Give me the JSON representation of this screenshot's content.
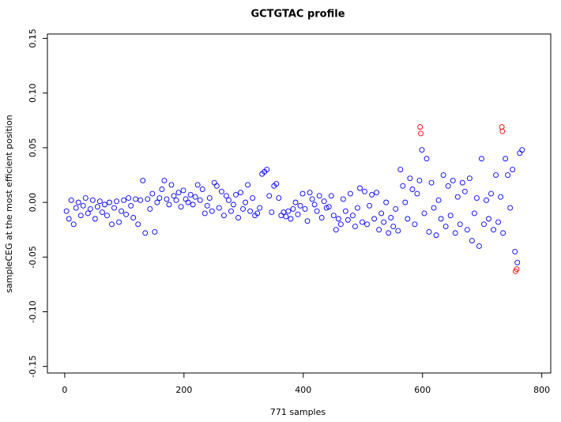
{
  "chart_data": {
    "type": "scatter",
    "title": "GCTGTAC profile",
    "x_label": "771 samples",
    "y_label": "sampleCEG at the most efficient position",
    "xlim": [
      -29,
      815
    ],
    "ylim": [
      -0.156,
      0.154
    ],
    "xticks": [
      0,
      200,
      400,
      600,
      800
    ],
    "yticks": [
      {
        "value": -0.15,
        "label": "-0.15"
      },
      {
        "value": -0.1,
        "label": "-0.10"
      },
      {
        "value": -0.05,
        "label": "-0.05"
      },
      {
        "value": 0,
        "label": "0.00"
      },
      0.05,
      {
        "value": 0.1,
        "label": "0.10"
      },
      0.15
    ],
    "series": [
      {
        "color": "#0000ff",
        "x": [
          3,
          7,
          11,
          15,
          19,
          23,
          27,
          31,
          35,
          39,
          43,
          47,
          51,
          55,
          59,
          63,
          67,
          71,
          75,
          79,
          83,
          87,
          91,
          95,
          99,
          103,
          107,
          111,
          115,
          119,
          123,
          127,
          131,
          135,
          139,
          143,
          147,
          151,
          155,
          159,
          163,
          167,
          171,
          175,
          179,
          183,
          187,
          191,
          195,
          199,
          203,
          207,
          211,
          215,
          219,
          223,
          227,
          231,
          235,
          239,
          243,
          247,
          251,
          255,
          259,
          263,
          267,
          271,
          275,
          279,
          283,
          287,
          291,
          295,
          299,
          303,
          307,
          311,
          315,
          319,
          323,
          327,
          331,
          335,
          339,
          343,
          347,
          351,
          355,
          359,
          363,
          367,
          371,
          375,
          379,
          383,
          387,
          391,
          395,
          399,
          403,
          407,
          411,
          415,
          419,
          423,
          427,
          431,
          435,
          439,
          443,
          447,
          451,
          455,
          459,
          463,
          467,
          471,
          475,
          479,
          483,
          487,
          491,
          495,
          499,
          503,
          507,
          511,
          515,
          519,
          523,
          527,
          531,
          535,
          539,
          543,
          547,
          551,
          555,
          559,
          563,
          567,
          571,
          575,
          579,
          583,
          587,
          591,
          595,
          599,
          603,
          607,
          611,
          615,
          619,
          623,
          627,
          631,
          635,
          639,
          643,
          647,
          651,
          655,
          659,
          663,
          667,
          671,
          675,
          679,
          683,
          687,
          691,
          695,
          699,
          703,
          707,
          711,
          715,
          719,
          723,
          727,
          731,
          735,
          739,
          743,
          747,
          751,
          755,
          759,
          763,
          767
        ],
        "values": [
          -0.008,
          -0.015,
          0.002,
          -0.02,
          -0.005,
          0.0,
          -0.012,
          -0.003,
          0.004,
          -0.01,
          -0.006,
          0.002,
          -0.015,
          -0.004,
          0.001,
          -0.009,
          -0.002,
          -0.012,
          0.0,
          -0.02,
          -0.005,
          0.001,
          -0.018,
          -0.008,
          0.002,
          -0.011,
          0.004,
          -0.003,
          -0.014,
          0.003,
          -0.02,
          0.002,
          0.02,
          -0.028,
          0.003,
          -0.006,
          0.008,
          -0.027,
          0.0,
          0.004,
          0.012,
          0.02,
          0.003,
          -0.002,
          0.016,
          0.006,
          0.002,
          0.009,
          -0.004,
          0.011,
          0.003,
          0.0,
          0.007,
          -0.002,
          0.005,
          0.016,
          0.002,
          0.012,
          -0.01,
          -0.003,
          0.004,
          -0.008,
          0.018,
          0.015,
          -0.005,
          0.01,
          -0.012,
          0.006,
          0.002,
          -0.008,
          -0.002,
          0.007,
          -0.014,
          0.009,
          -0.006,
          0.0,
          0.016,
          -0.008,
          0.004,
          -0.012,
          -0.01,
          -0.005,
          0.026,
          0.028,
          0.03,
          0.006,
          -0.009,
          0.015,
          0.017,
          0.004,
          -0.012,
          -0.009,
          -0.013,
          -0.008,
          -0.015,
          -0.006,
          0.0,
          -0.011,
          -0.003,
          0.008,
          -0.006,
          -0.017,
          0.009,
          0.003,
          -0.002,
          -0.008,
          0.006,
          -0.014,
          0.001,
          -0.005,
          -0.004,
          0.006,
          -0.012,
          -0.025,
          -0.015,
          -0.02,
          0.003,
          -0.008,
          -0.016,
          0.008,
          -0.012,
          -0.022,
          -0.005,
          0.013,
          -0.018,
          0.01,
          -0.02,
          -0.003,
          0.007,
          -0.015,
          0.009,
          -0.025,
          -0.01,
          -0.018,
          0.0,
          -0.028,
          -0.014,
          -0.022,
          -0.006,
          -0.026,
          0.03,
          0.015,
          0.0,
          -0.015,
          0.022,
          0.012,
          -0.02,
          0.008,
          0.02,
          0.048,
          -0.01,
          0.04,
          -0.027,
          0.018,
          -0.005,
          -0.03,
          0.002,
          -0.015,
          0.025,
          -0.022,
          0.015,
          -0.012,
          0.02,
          -0.028,
          0.005,
          -0.02,
          0.018,
          0.01,
          -0.025,
          0.022,
          -0.035,
          -0.01,
          0.004,
          -0.04,
          0.04,
          -0.02,
          0.002,
          -0.015,
          0.008,
          -0.025,
          0.025,
          -0.018,
          0.005,
          -0.028,
          0.04,
          0.025,
          -0.005,
          0.03,
          -0.045,
          -0.055,
          0.045,
          0.048
        ]
      },
      {
        "color": "#ff0000",
        "x": [
          596,
          597,
          733,
          734,
          756,
          758
        ],
        "values": [
          0.069,
          0.063,
          0.069,
          0.065,
          -0.063,
          -0.061
        ]
      }
    ]
  }
}
